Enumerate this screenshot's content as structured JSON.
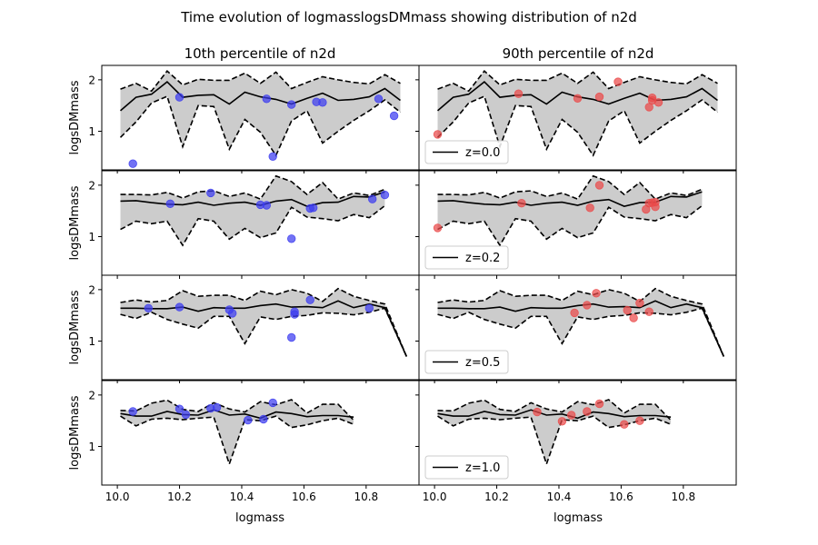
{
  "figure": {
    "title": "Time evolution of logmasslogsDMmass showing distribution of n2d",
    "column_titles": [
      "10th percentile of n2d",
      "90th percentile of n2d"
    ],
    "xlabel": "logmass",
    "ylabel": "logsDMmass"
  },
  "colors": {
    "band_fill": "#cccccc",
    "line": "#000000",
    "low_points": "#3b3bf0",
    "high_points": "#ea4a4a"
  },
  "chart_data": {
    "type": "line",
    "subtype": "median line with percentile band and scatter overlay, 4x2 grid",
    "xlim": [
      9.95,
      10.97
    ],
    "ylim": [
      0.25,
      2.28
    ],
    "xticks": [
      10.0,
      10.2,
      10.4,
      10.6,
      10.8
    ],
    "xtick_labels": [
      "10.0",
      "10.2",
      "10.4",
      "10.6",
      "10.8"
    ],
    "yticks": [
      1,
      2
    ],
    "ytick_labels": [
      "1",
      "2"
    ],
    "legend_placement": "lower-left (right column)",
    "rows": [
      {
        "redshift_label": "z=0.0",
        "x": [
          10.01,
          10.06,
          10.11,
          10.16,
          10.21,
          10.26,
          10.31,
          10.36,
          10.41,
          10.46,
          10.51,
          10.56,
          10.61,
          10.66,
          10.71,
          10.76,
          10.81,
          10.86,
          10.91
        ],
        "median": [
          1.4,
          1.66,
          1.72,
          1.96,
          1.66,
          1.7,
          1.71,
          1.53,
          1.76,
          1.67,
          1.62,
          1.53,
          1.64,
          1.74,
          1.6,
          1.62,
          1.67,
          1.83,
          1.6
        ],
        "upper": [
          1.82,
          1.93,
          1.78,
          2.17,
          1.9,
          2.01,
          1.99,
          1.99,
          2.13,
          1.93,
          2.15,
          1.83,
          1.95,
          2.06,
          2.0,
          1.95,
          1.92,
          2.1,
          1.93
        ],
        "lower": [
          0.88,
          1.18,
          1.55,
          1.68,
          0.7,
          1.5,
          1.48,
          0.65,
          1.23,
          0.98,
          0.53,
          1.2,
          1.4,
          0.77,
          1.0,
          1.21,
          1.4,
          1.61,
          1.37
        ],
        "low_points": {
          "x": [
            10.05,
            10.2,
            10.48,
            10.5,
            10.56,
            10.64,
            10.66,
            10.84,
            10.89
          ],
          "y": [
            0.37,
            1.66,
            1.63,
            0.51,
            1.52,
            1.57,
            1.56,
            1.63,
            1.3
          ]
        },
        "high_points": {
          "x": [
            10.01,
            10.27,
            10.46,
            10.53,
            10.59,
            10.69,
            10.7,
            10.7,
            10.72
          ],
          "y": [
            0.94,
            1.73,
            1.64,
            1.67,
            1.96,
            1.47,
            1.65,
            1.6,
            1.56
          ]
        }
      },
      {
        "redshift_label": "z=0.2",
        "x": [
          10.01,
          10.06,
          10.11,
          10.16,
          10.21,
          10.26,
          10.31,
          10.36,
          10.41,
          10.46,
          10.51,
          10.56,
          10.61,
          10.66,
          10.71,
          10.76,
          10.81,
          10.86
        ],
        "median": [
          1.69,
          1.7,
          1.66,
          1.63,
          1.62,
          1.67,
          1.61,
          1.65,
          1.67,
          1.61,
          1.69,
          1.72,
          1.59,
          1.66,
          1.67,
          1.78,
          1.77,
          1.87
        ],
        "upper": [
          1.82,
          1.82,
          1.81,
          1.86,
          1.75,
          1.87,
          1.89,
          1.78,
          1.85,
          1.73,
          2.18,
          2.07,
          1.82,
          2.05,
          1.73,
          1.85,
          1.8,
          1.92
        ],
        "lower": [
          1.14,
          1.3,
          1.25,
          1.3,
          0.83,
          1.35,
          1.3,
          0.95,
          1.16,
          0.98,
          1.07,
          1.57,
          1.38,
          1.35,
          1.31,
          1.43,
          1.37,
          1.6
        ],
        "low_points": {
          "x": [
            10.17,
            10.3,
            10.46,
            10.48,
            10.56,
            10.62,
            10.63,
            10.82,
            10.86
          ],
          "y": [
            1.64,
            1.85,
            1.62,
            1.61,
            0.96,
            1.55,
            1.56,
            1.73,
            1.81
          ]
        },
        "high_points": {
          "x": [
            10.01,
            10.28,
            10.5,
            10.53,
            10.68,
            10.69,
            10.7,
            10.71,
            10.71
          ],
          "y": [
            1.17,
            1.65,
            1.56,
            2.0,
            1.53,
            1.65,
            1.66,
            1.67,
            1.58
          ]
        }
      },
      {
        "redshift_label": "z=0.5",
        "x": [
          10.01,
          10.06,
          10.11,
          10.16,
          10.21,
          10.26,
          10.31,
          10.36,
          10.41,
          10.46,
          10.51,
          10.56,
          10.61,
          10.66,
          10.71,
          10.76,
          10.81,
          10.86,
          10.93
        ],
        "median": [
          1.64,
          1.64,
          1.63,
          1.63,
          1.66,
          1.58,
          1.65,
          1.64,
          1.64,
          1.69,
          1.72,
          1.66,
          1.67,
          1.65,
          1.78,
          1.65,
          1.72,
          1.65,
          0.7
        ],
        "upper": [
          1.75,
          1.8,
          1.76,
          1.79,
          1.98,
          1.87,
          1.89,
          1.89,
          1.79,
          1.97,
          1.9,
          2.0,
          1.93,
          1.77,
          2.02,
          1.87,
          1.79,
          1.72,
          0.7
        ],
        "lower": [
          1.52,
          1.44,
          1.56,
          1.42,
          1.33,
          1.25,
          1.48,
          1.48,
          0.95,
          1.47,
          1.42,
          1.48,
          1.5,
          1.55,
          1.54,
          1.51,
          1.56,
          1.64,
          0.7
        ],
        "low_points": {
          "x": [
            10.1,
            10.2,
            10.36,
            10.37,
            10.56,
            10.57,
            10.57,
            10.62,
            10.81
          ],
          "y": [
            1.64,
            1.66,
            1.61,
            1.54,
            1.07,
            1.52,
            1.57,
            1.8,
            1.64
          ]
        },
        "high_points": {
          "x": [
            10.45,
            10.49,
            10.52,
            10.62,
            10.64,
            10.66,
            10.69
          ],
          "y": [
            1.55,
            1.7,
            1.93,
            1.6,
            1.45,
            1.74,
            1.57
          ]
        }
      },
      {
        "redshift_label": "z=1.0",
        "x": [
          10.01,
          10.06,
          10.11,
          10.16,
          10.21,
          10.26,
          10.31,
          10.36,
          10.41,
          10.46,
          10.51,
          10.56,
          10.61,
          10.66,
          10.71,
          10.76
        ],
        "median": [
          1.64,
          1.59,
          1.59,
          1.68,
          1.62,
          1.61,
          1.71,
          1.61,
          1.63,
          1.55,
          1.67,
          1.64,
          1.58,
          1.6,
          1.6,
          1.57
        ],
        "upper": [
          1.7,
          1.69,
          1.84,
          1.9,
          1.72,
          1.68,
          1.85,
          1.73,
          1.67,
          1.87,
          1.81,
          1.91,
          1.65,
          1.82,
          1.82,
          1.51
        ],
        "lower": [
          1.59,
          1.4,
          1.53,
          1.55,
          1.52,
          1.55,
          1.57,
          0.66,
          1.52,
          1.5,
          1.59,
          1.37,
          1.42,
          1.5,
          1.55,
          1.43
        ],
        "low_points": {
          "x": [
            10.05,
            10.2,
            10.22,
            10.3,
            10.32,
            10.42,
            10.47,
            10.5
          ],
          "y": [
            1.68,
            1.73,
            1.62,
            1.74,
            1.76,
            1.51,
            1.53,
            1.85
          ]
        },
        "high_points": {
          "x": [
            10.33,
            10.41,
            10.44,
            10.49,
            10.53,
            10.61,
            10.66
          ],
          "y": [
            1.67,
            1.49,
            1.61,
            1.68,
            1.83,
            1.43,
            1.5
          ]
        }
      }
    ]
  }
}
